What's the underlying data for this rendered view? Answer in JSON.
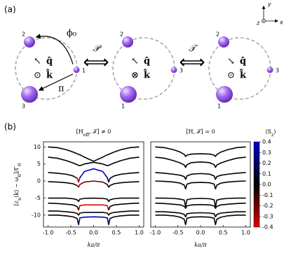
{
  "panel_a": {
    "label": "(a)",
    "axes": {
      "x": "x",
      "y": "y",
      "z": "z"
    },
    "operators": [
      {
        "symbol": "𝒫",
        "arrow": "⟺"
      },
      {
        "symbol": "𝒯",
        "arrow": "⟺"
      }
    ],
    "diagrams": [
      {
        "nodes": [
          "1",
          "2",
          "3"
        ],
        "q_arrow": "↖",
        "q": "q̂",
        "k_symbol": "⊙",
        "k": "k̂",
        "annotations": [
          "ϕ₀",
          "π"
        ]
      },
      {
        "nodes": [
          "1",
          "2",
          "3"
        ],
        "q_arrow": "↖",
        "q": "q̂",
        "k_symbol": "⊗",
        "k": "k̂"
      },
      {
        "nodes": [
          "1",
          "2",
          "3"
        ],
        "q_arrow": "↘",
        "q": "q̂",
        "k_symbol": "⊙",
        "k": "k̂"
      }
    ]
  },
  "panel_b_label": "(b)",
  "colorbar": {
    "label": [
      "⟨S",
      "z",
      "⟩"
    ],
    "lim": [
      -0.4,
      0.4
    ],
    "ticks": [
      0.4,
      0.3,
      0.2,
      0.1,
      {
        "value": 0,
        "label": "0.0"
      },
      -0.1,
      -0.2,
      -0.3,
      -0.4
    ],
    "colors": [
      "#e00000",
      "#000000",
      "#0000c8"
    ]
  },
  "chart_data": [
    {
      "type": "line",
      "title": [
        "[H",
        "eff",
        ", 𝒯] ≠ 0"
      ],
      "x_label": "ka/π",
      "y_label": [
        "[ε",
        "n",
        "(k) − ω",
        "0",
        "]/Γ",
        "0"
      ],
      "xlim": [
        -1.1,
        1.1
      ],
      "ylim": [
        -13.5,
        11.5
      ],
      "xticks": [
        {
          "value": -1,
          "label": "-1.0"
        },
        {
          "value": -0.5,
          "label": "-0.5"
        },
        {
          "value": 0,
          "label": "0.0"
        },
        {
          "value": 0.5,
          "label": "0.5"
        },
        {
          "value": 1,
          "label": "1.0"
        }
      ],
      "yticks": [
        -10,
        -5,
        0,
        5,
        10
      ],
      "x": [
        -1,
        -0.8,
        -0.6,
        -0.45,
        -0.36,
        -0.33,
        -0.3,
        -0.2,
        0,
        0.2,
        0.3,
        0.33,
        0.36,
        0.45,
        0.6,
        0.8,
        1
      ],
      "series": [
        {
          "values": [
            10,
            9.8,
            9.2,
            8.5,
            8,
            7.8,
            7.7,
            7,
            5.8,
            7,
            7.7,
            7.8,
            8,
            8.5,
            9.2,
            9.8,
            10
          ],
          "sz": [
            0,
            0,
            0,
            0,
            0,
            0,
            0,
            0,
            0,
            0,
            0,
            0,
            0,
            0,
            0,
            0,
            0
          ]
        },
        {
          "values": [
            7,
            6.7,
            6,
            5.3,
            4.8,
            4.6,
            4.5,
            5,
            5.5,
            5,
            4.5,
            4.6,
            4.8,
            5.3,
            6,
            6.7,
            7
          ],
          "sz": [
            0,
            0,
            0,
            0,
            0,
            0,
            0,
            0,
            0,
            0,
            0,
            0,
            0,
            0,
            0,
            0,
            0
          ]
        },
        {
          "values": [
            2.5,
            2.3,
            2,
            1.5,
            0.8,
            -0.3,
            1,
            2.8,
            3.6,
            2.8,
            1,
            -0.3,
            0.8,
            1.5,
            2,
            2.3,
            2.5
          ],
          "sz": [
            0,
            0,
            0,
            0,
            -0.2,
            -0.4,
            0.3,
            0.4,
            0.4,
            0.4,
            0.3,
            0.1,
            0,
            0,
            0,
            0,
            0
          ]
        },
        {
          "values": [
            -0.2,
            -0.3,
            -0.5,
            -0.8,
            -1.3,
            -1.8,
            -1,
            -0.3,
            0,
            -0.3,
            -1,
            -1.8,
            -1.3,
            -0.8,
            -0.5,
            -0.3,
            -0.2
          ],
          "sz": [
            0,
            0,
            0,
            0,
            -0.1,
            -0.3,
            -0.3,
            -0.2,
            -0.2,
            -0.2,
            -0.1,
            0,
            0,
            0,
            0,
            0,
            0
          ]
        },
        {
          "values": [
            -5,
            -5,
            -5,
            -5.2,
            -5.5,
            -6,
            -5.3,
            -5.1,
            -5,
            -5.1,
            -5.3,
            -6,
            -5.5,
            -5.2,
            -5,
            -5,
            -5
          ],
          "sz": [
            0,
            0,
            0,
            0,
            0,
            0,
            0,
            0,
            0,
            0,
            0,
            0,
            0,
            0,
            0,
            0,
            0
          ]
        },
        {
          "values": [
            -6.5,
            -6.6,
            -6.8,
            -7,
            -7.5,
            -8.5,
            -7.2,
            -7,
            -7,
            -7,
            -7.2,
            -8.5,
            -7.5,
            -7,
            -6.8,
            -6.6,
            -6.5
          ],
          "sz": [
            0,
            0,
            0,
            0,
            0,
            -0.2,
            -0.4,
            -0.4,
            -0.4,
            -0.4,
            -0.4,
            -0.2,
            0,
            0,
            0,
            0,
            0
          ]
        },
        {
          "values": [
            -8.8,
            -8.8,
            -9,
            -9.2,
            -9.5,
            -10,
            -9.4,
            -9.2,
            -9.2,
            -9.2,
            -9.4,
            -10,
            -9.5,
            -9.2,
            -9,
            -8.8,
            -8.8
          ],
          "sz": [
            0,
            0,
            0,
            0,
            0,
            0,
            0,
            0,
            0,
            0,
            0,
            0,
            0,
            0,
            0,
            0,
            0
          ]
        },
        {
          "values": [
            -10,
            -10,
            -10.2,
            -10.5,
            -11,
            -12.8,
            -10.8,
            -10.6,
            -10.5,
            -10.6,
            -10.8,
            -12.8,
            -11,
            -10.5,
            -10.2,
            -10,
            -10
          ],
          "sz": [
            0,
            0,
            0,
            0,
            0,
            0.2,
            0.4,
            0.4,
            0.4,
            0.4,
            0.4,
            0.2,
            0,
            0,
            0,
            0,
            0
          ]
        }
      ]
    },
    {
      "type": "line",
      "title": [
        "[H, 𝒯] = 0"
      ],
      "x_label": "ka/π",
      "xlim": [
        -1.1,
        1.1
      ],
      "ylim": [
        -13.5,
        11.5
      ],
      "xticks": [
        {
          "value": -1,
          "label": "-1.0"
        },
        {
          "value": -0.5,
          "label": "-0.5"
        },
        {
          "value": 0,
          "label": "0.0"
        },
        {
          "value": 0.5,
          "label": "0.5"
        },
        {
          "value": 1,
          "label": "1.0"
        }
      ],
      "x": [
        -1,
        -0.8,
        -0.6,
        -0.45,
        -0.36,
        -0.33,
        -0.3,
        -0.2,
        0,
        0.2,
        0.3,
        0.33,
        0.36,
        0.45,
        0.6,
        0.8,
        1
      ],
      "color": "#000000",
      "series": [
        {
          "values": [
            10,
            9.8,
            9.2,
            8.5,
            7.8,
            7.2,
            7.6,
            7.9,
            8,
            7.9,
            7.6,
            7.2,
            7.8,
            8.5,
            9.2,
            9.8,
            10
          ]
        },
        {
          "values": [
            7,
            6.7,
            6,
            5.3,
            4.7,
            4,
            4.8,
            5.4,
            5.6,
            5.4,
            4.8,
            4,
            4.7,
            5.3,
            6,
            6.7,
            7
          ]
        },
        {
          "values": [
            2.5,
            2.3,
            2,
            1.7,
            1.3,
            0.5,
            1.5,
            2,
            2.2,
            2,
            1.5,
            0.5,
            1.3,
            1.7,
            2,
            2.3,
            2.5
          ]
        },
        {
          "values": [
            0,
            -0.1,
            -0.3,
            -0.6,
            -1.2,
            -2.3,
            -0.9,
            -0.5,
            -0.4,
            -0.5,
            -0.9,
            -2.3,
            -1.2,
            -0.6,
            -0.3,
            -0.1,
            0
          ]
        },
        {
          "values": [
            -5,
            -5,
            -5.1,
            -5.3,
            -5.6,
            -7.5,
            -5.5,
            -5.2,
            -5.1,
            -5.2,
            -5.5,
            -7.5,
            -5.6,
            -5.3,
            -5.1,
            -5,
            -5
          ]
        },
        {
          "values": [
            -6.5,
            -6.6,
            -6.8,
            -7,
            -7.4,
            -8,
            -7.3,
            -7,
            -6.9,
            -7,
            -7.3,
            -8,
            -7.4,
            -7,
            -6.8,
            -6.6,
            -6.5
          ]
        },
        {
          "values": [
            -9,
            -9,
            -9.2,
            -9.4,
            -9.8,
            -10.5,
            -9.6,
            -9.4,
            -9.3,
            -9.4,
            -9.6,
            -10.5,
            -9.8,
            -9.4,
            -9.2,
            -9,
            -9
          ]
        },
        {
          "values": [
            -10,
            -10,
            -10.2,
            -10.6,
            -11.2,
            -12.8,
            -10.9,
            -10.6,
            -10.5,
            -10.6,
            -10.9,
            -12.8,
            -11.2,
            -10.6,
            -10.2,
            -10,
            -10
          ]
        }
      ]
    }
  ]
}
